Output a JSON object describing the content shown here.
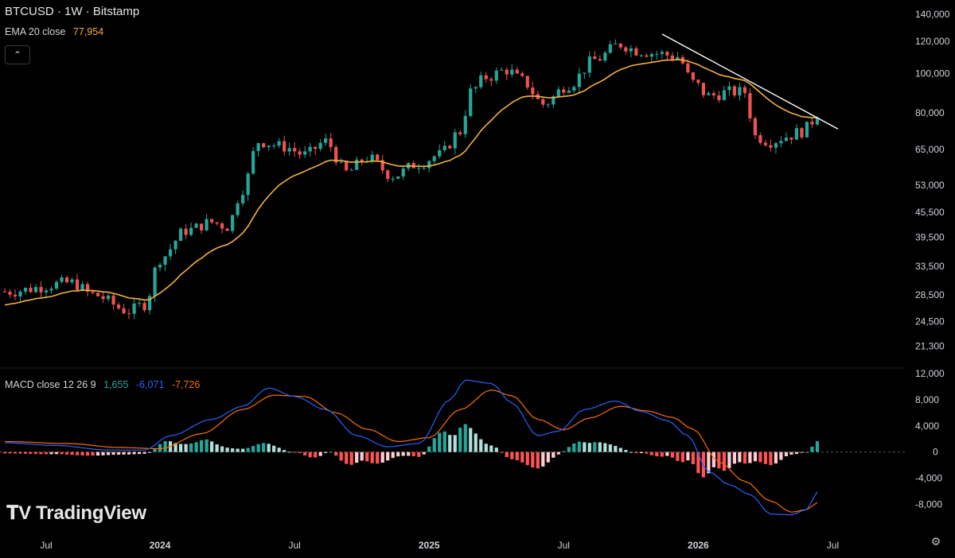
{
  "header": {
    "symbol": "BTCUSD · 1W · Bitstamp",
    "ema_label": "EMA 20 close",
    "ema_value": "77,954",
    "collapse_icon": "chevron-up-icon",
    "macd_label": "MACD close 12 26 9",
    "macd_hist": "1,655",
    "macd_line": "-6,071",
    "macd_signal": "-7,726"
  },
  "colors": {
    "background": "#000000",
    "up": "#26a69a",
    "down": "#ef5350",
    "ema": "#f5b041",
    "macd_line": "#2962ff",
    "signal_line": "#ff6d00",
    "hist_up_strong": "#26a69a",
    "hist_up_weak": "#b2dfdb",
    "hist_down_strong": "#ff5252",
    "hist_down_weak": "#ffcdd2",
    "trendline": "#ffffff"
  },
  "branding": {
    "name": "TradingView",
    "icon": "tradingview-logo-icon"
  },
  "settings_icon": "gear-icon",
  "chart_data": [
    {
      "type": "candlestick",
      "title": "BTCUSD · 1W · Bitstamp",
      "scale": "log",
      "ylim": [
        19500,
        145000
      ],
      "y_ticks": [
        "140,000",
        "120,000",
        "100,000",
        "80,000",
        "65,000",
        "53,000",
        "45,500",
        "39,500",
        "33,500",
        "28,500",
        "24,500",
        "21,300"
      ],
      "x_ticks": [
        "Jul",
        "2024",
        "Jul",
        "2025",
        "Jul",
        "2026",
        "Jul"
      ],
      "x_ticks_bold": [
        "2024",
        "2025",
        "2026"
      ],
      "week_anchors": [
        {
          "week": 0,
          "price": 29000
        },
        {
          "week": 13,
          "price": 30500
        },
        {
          "week": 17,
          "price": 28500
        },
        {
          "week": 24,
          "price": 26000
        },
        {
          "week": 27,
          "price": 27000
        },
        {
          "week": 30,
          "price": 35000
        },
        {
          "week": 35,
          "price": 41000
        },
        {
          "week": 40,
          "price": 43000
        },
        {
          "week": 43,
          "price": 42000
        },
        {
          "week": 46,
          "price": 52000
        },
        {
          "week": 49,
          "price": 68000
        },
        {
          "week": 54,
          "price": 66000
        },
        {
          "week": 58,
          "price": 63000
        },
        {
          "week": 62,
          "price": 68000
        },
        {
          "week": 66,
          "price": 57000
        },
        {
          "week": 70,
          "price": 62000
        },
        {
          "week": 75,
          "price": 56000
        },
        {
          "week": 80,
          "price": 60000
        },
        {
          "week": 84,
          "price": 63000
        },
        {
          "week": 88,
          "price": 72000
        },
        {
          "week": 90,
          "price": 90000
        },
        {
          "week": 93,
          "price": 98000
        },
        {
          "week": 97,
          "price": 102000
        },
        {
          "week": 100,
          "price": 96000
        },
        {
          "week": 104,
          "price": 84000
        },
        {
          "week": 109,
          "price": 94000
        },
        {
          "week": 114,
          "price": 108000
        },
        {
          "week": 119,
          "price": 118000
        },
        {
          "week": 122,
          "price": 114000
        },
        {
          "week": 126,
          "price": 112000
        },
        {
          "week": 130,
          "price": 110000
        },
        {
          "week": 133,
          "price": 95000
        },
        {
          "week": 136,
          "price": 88000
        },
        {
          "week": 140,
          "price": 90000
        },
        {
          "week": 143,
          "price": 90000
        },
        {
          "week": 145,
          "price": 70000
        },
        {
          "week": 148,
          "price": 68000
        },
        {
          "week": 151,
          "price": 70000
        },
        {
          "week": 154,
          "price": 72000
        },
        {
          "week": 157,
          "price": 77954
        }
      ],
      "ema": {
        "name": "EMA 20 close",
        "last": 77954
      },
      "trendline": {
        "from": {
          "week": 127,
          "price": 125000
        },
        "to": {
          "week": 161,
          "price": 73000
        }
      }
    },
    {
      "type": "macd",
      "title": "MACD close 12 26 9",
      "ylim": [
        -10500,
        12000
      ],
      "y_ticks": [
        "12,000",
        "8,000",
        "4,000",
        "0",
        "-4,000",
        "-8,000"
      ],
      "last": {
        "histogram": 1655,
        "macd": -6071,
        "signal": -7726
      },
      "macd_anchors": [
        {
          "week": 0,
          "value": 1400
        },
        {
          "week": 10,
          "value": 1000
        },
        {
          "week": 20,
          "value": 300
        },
        {
          "week": 27,
          "value": 300
        },
        {
          "week": 32,
          "value": 2500
        },
        {
          "week": 40,
          "value": 5000
        },
        {
          "week": 46,
          "value": 7000
        },
        {
          "week": 51,
          "value": 9800
        },
        {
          "week": 56,
          "value": 8500
        },
        {
          "week": 62,
          "value": 6500
        },
        {
          "week": 68,
          "value": 2500
        },
        {
          "week": 74,
          "value": 800
        },
        {
          "week": 80,
          "value": 1300
        },
        {
          "week": 86,
          "value": 8000
        },
        {
          "week": 89,
          "value": 11000
        },
        {
          "week": 94,
          "value": 10500
        },
        {
          "week": 98,
          "value": 7500
        },
        {
          "week": 103,
          "value": 2500
        },
        {
          "week": 107,
          "value": 3200
        },
        {
          "week": 112,
          "value": 6500
        },
        {
          "week": 118,
          "value": 7800
        },
        {
          "week": 123,
          "value": 6200
        },
        {
          "week": 128,
          "value": 4800
        },
        {
          "week": 132,
          "value": 2500
        },
        {
          "week": 136,
          "value": -3000
        },
        {
          "week": 140,
          "value": -5000
        },
        {
          "week": 144,
          "value": -6500
        },
        {
          "week": 148,
          "value": -9500
        },
        {
          "week": 152,
          "value": -9600
        },
        {
          "week": 155,
          "value": -8800
        },
        {
          "week": 157,
          "value": -6071
        }
      ],
      "signal_anchors": [
        {
          "week": 0,
          "value": 1600
        },
        {
          "week": 12,
          "value": 1300
        },
        {
          "week": 22,
          "value": 700
        },
        {
          "week": 30,
          "value": 500
        },
        {
          "week": 38,
          "value": 2800
        },
        {
          "week": 46,
          "value": 6500
        },
        {
          "week": 52,
          "value": 8700
        },
        {
          "week": 58,
          "value": 8500
        },
        {
          "week": 64,
          "value": 6000
        },
        {
          "week": 70,
          "value": 3500
        },
        {
          "week": 76,
          "value": 1600
        },
        {
          "week": 82,
          "value": 2200
        },
        {
          "week": 88,
          "value": 6500
        },
        {
          "week": 94,
          "value": 9500
        },
        {
          "week": 98,
          "value": 8600
        },
        {
          "week": 103,
          "value": 5000
        },
        {
          "week": 108,
          "value": 3400
        },
        {
          "week": 113,
          "value": 5200
        },
        {
          "week": 119,
          "value": 7000
        },
        {
          "week": 124,
          "value": 6300
        },
        {
          "week": 129,
          "value": 5300
        },
        {
          "week": 133,
          "value": 3500
        },
        {
          "week": 138,
          "value": -1500
        },
        {
          "week": 143,
          "value": -4500
        },
        {
          "week": 148,
          "value": -7500
        },
        {
          "week": 152,
          "value": -9200
        },
        {
          "week": 155,
          "value": -8800
        },
        {
          "week": 157,
          "value": -7726
        }
      ]
    }
  ]
}
